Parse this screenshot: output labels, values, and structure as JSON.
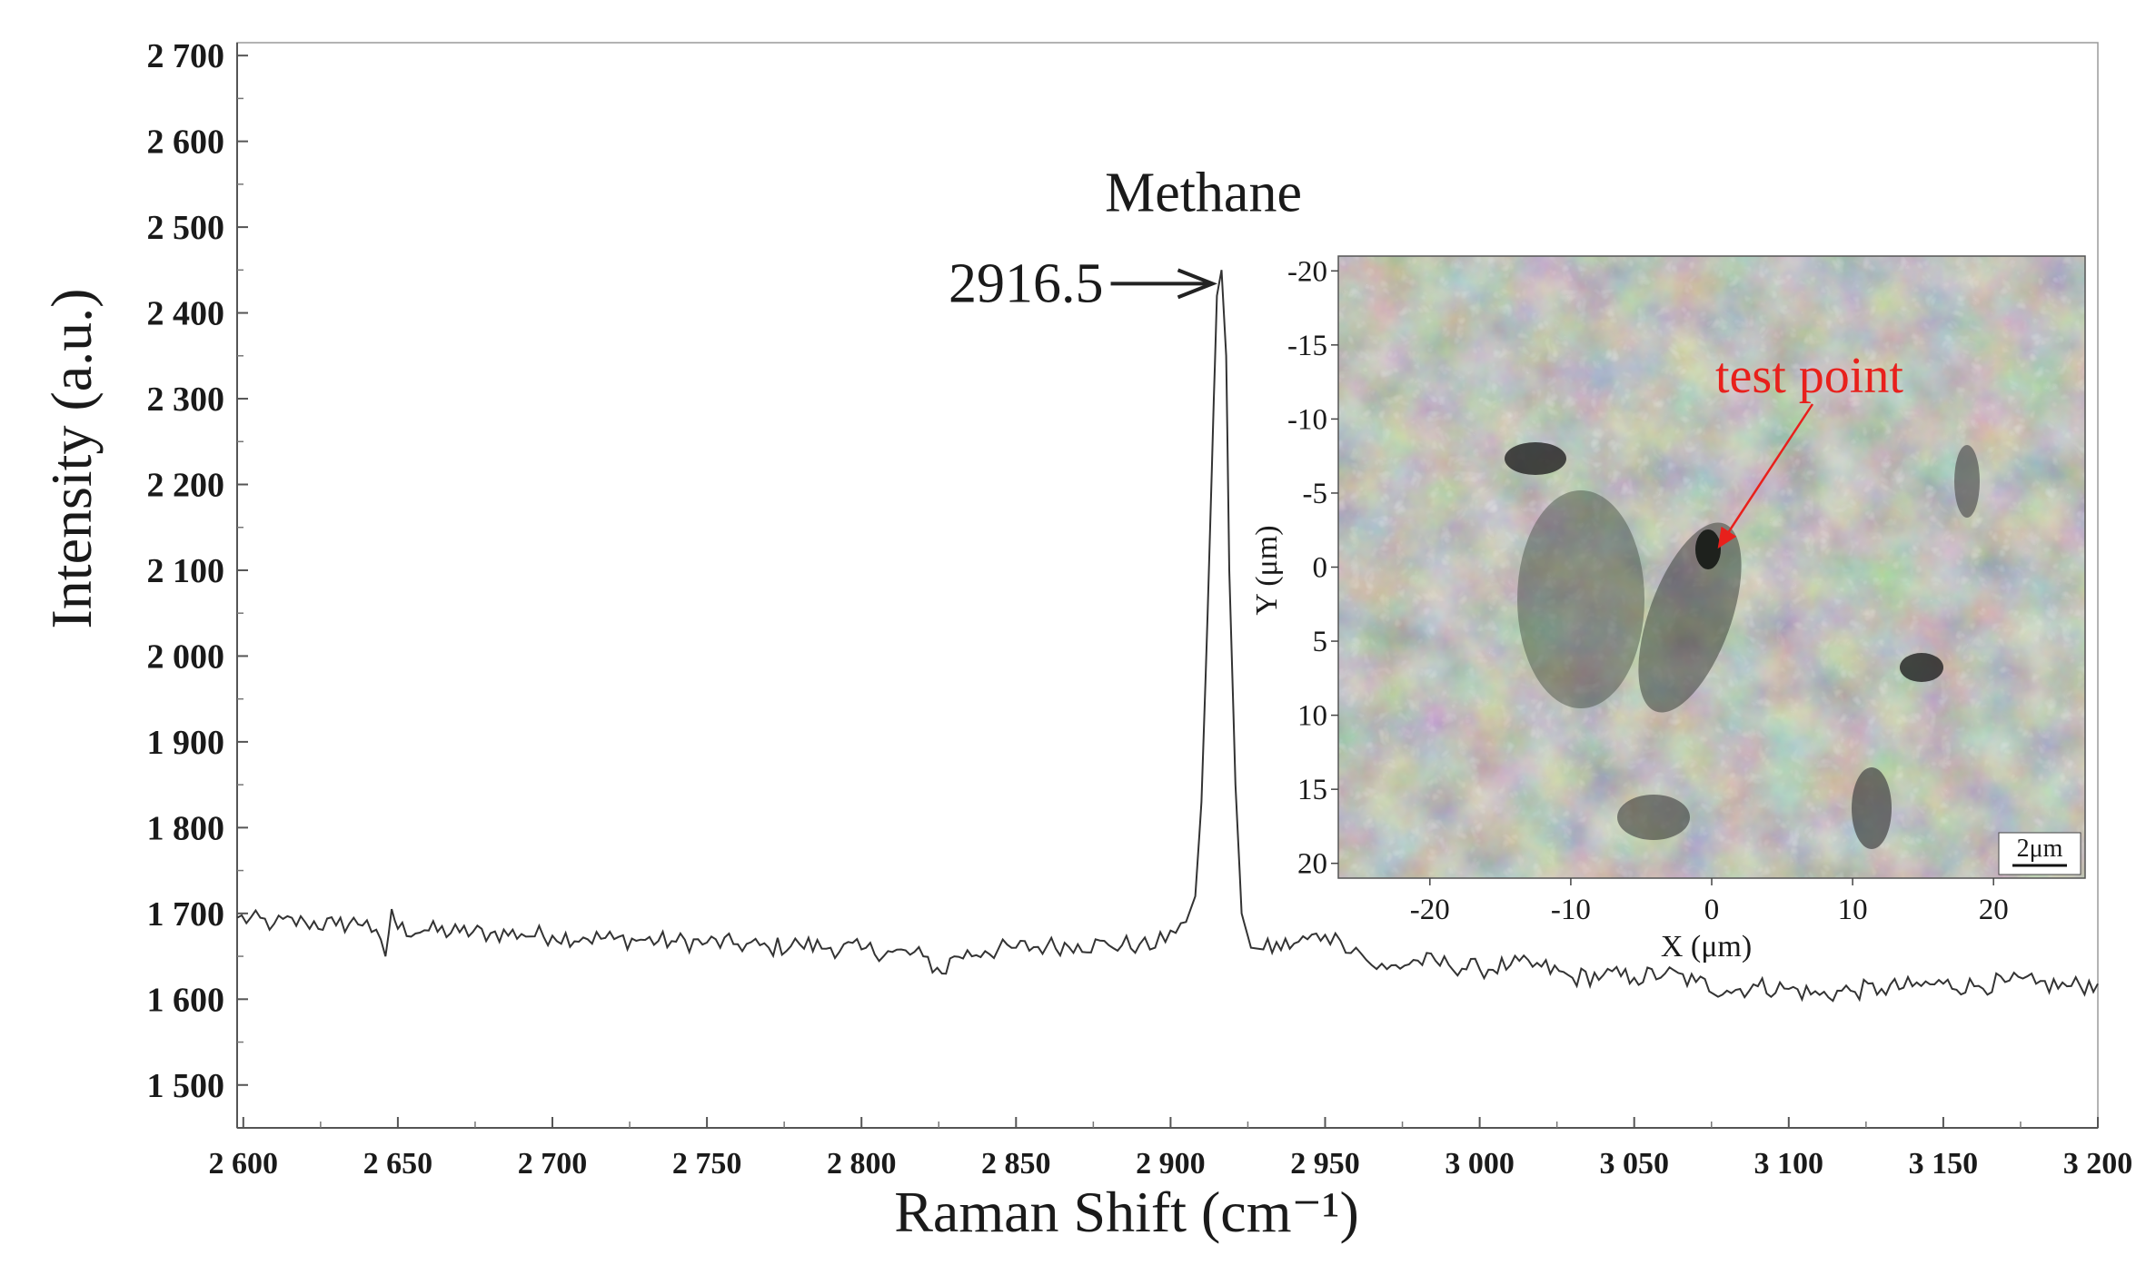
{
  "chart_data": {
    "type": "line",
    "xlabel": "Raman Shift (cm⁻¹)",
    "ylabel": "Intensity (a.u.)",
    "xlim": [
      2598,
      3200
    ],
    "ylim": [
      1450,
      2715
    ],
    "xticks": [
      2600,
      2650,
      2700,
      2750,
      2800,
      2850,
      2900,
      2950,
      3000,
      3050,
      3100,
      3150,
      3200
    ],
    "xtick_labels": [
      "2 600",
      "2 650",
      "2 700",
      "2 750",
      "2 800",
      "2 850",
      "2 900",
      "2 950",
      "3 000",
      "3 050",
      "3 100",
      "3 150",
      "3 200"
    ],
    "yticks": [
      1500,
      1600,
      1700,
      1800,
      1900,
      2000,
      2100,
      2200,
      2300,
      2400,
      2500,
      2600,
      2700
    ],
    "ytick_labels": [
      "1 500",
      "1 600",
      "1 700",
      "1 800",
      "1 900",
      "2 000",
      "2 100",
      "2 200",
      "2 300",
      "2 400",
      "2 500",
      "2 600",
      "2 700"
    ],
    "grid": false,
    "series": [
      {
        "color": "#333333",
        "x": [
          2598,
          2610,
          2620,
          2630,
          2640,
          2646,
          2648,
          2650,
          2660,
          2670,
          2680,
          2690,
          2700,
          2710,
          2720,
          2730,
          2740,
          2750,
          2760,
          2770,
          2780,
          2790,
          2800,
          2810,
          2820,
          2826,
          2830,
          2840,
          2850,
          2860,
          2870,
          2880,
          2890,
          2895,
          2900,
          2905,
          2908,
          2910,
          2912,
          2914,
          2915,
          2916.5,
          2918,
          2919,
          2921,
          2923,
          2926,
          2930,
          2940,
          2950,
          2955,
          2960,
          2965,
          2970,
          2980,
          2990,
          3000,
          3010,
          3020,
          3030,
          3040,
          3050,
          3060,
          3070,
          3080,
          3090,
          3100,
          3110,
          3120,
          3130,
          3140,
          3150,
          3160,
          3170,
          3180,
          3190,
          3200
        ],
        "y": [
          1695,
          1688,
          1690,
          1686,
          1692,
          1650,
          1705,
          1682,
          1680,
          1678,
          1677,
          1676,
          1674,
          1672,
          1670,
          1669,
          1667,
          1666,
          1664,
          1660,
          1664,
          1660,
          1658,
          1655,
          1650,
          1630,
          1650,
          1656,
          1660,
          1662,
          1664,
          1663,
          1664,
          1660,
          1680,
          1690,
          1720,
          1830,
          2050,
          2300,
          2420,
          2450,
          2350,
          2100,
          1850,
          1700,
          1660,
          1658,
          1665,
          1675,
          1668,
          1660,
          1640,
          1635,
          1645,
          1640,
          1635,
          1640,
          1638,
          1625,
          1628,
          1625,
          1630,
          1620,
          1610,
          1615,
          1612,
          1605,
          1610,
          1612,
          1615,
          1618,
          1615,
          1620,
          1618,
          1615,
          1618
        ]
      }
    ],
    "annotations": [
      {
        "text": "Methane",
        "x": 2916.5,
        "y": 2540
      },
      {
        "text": "2916.5",
        "x": 2916.5,
        "y": 2450
      }
    ],
    "inset": {
      "xlabel": "X (μm)",
      "ylabel": "Y (μm)",
      "xticks": [
        -20,
        -10,
        0,
        10,
        20
      ],
      "yticks": [
        -20,
        -15,
        -10,
        -5,
        0,
        5,
        10,
        15,
        20
      ],
      "xlim": [
        -26.5,
        26.5
      ],
      "ylim": [
        -21,
        21
      ],
      "marker_label": "test point",
      "marker_x": 1,
      "marker_y": -1.5,
      "scale_bar": "2μm",
      "label_color": "#e8201c",
      "background_color": "#8a8a82"
    }
  }
}
